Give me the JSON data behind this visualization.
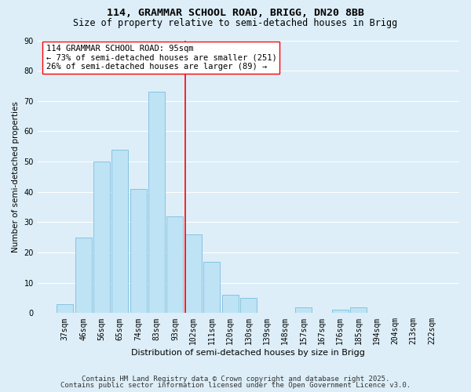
{
  "title": "114, GRAMMAR SCHOOL ROAD, BRIGG, DN20 8BB",
  "subtitle": "Size of property relative to semi-detached houses in Brigg",
  "xlabel": "Distribution of semi-detached houses by size in Brigg",
  "ylabel": "Number of semi-detached properties",
  "bar_labels": [
    "37sqm",
    "46sqm",
    "56sqm",
    "65sqm",
    "74sqm",
    "83sqm",
    "93sqm",
    "102sqm",
    "111sqm",
    "120sqm",
    "130sqm",
    "139sqm",
    "148sqm",
    "157sqm",
    "167sqm",
    "176sqm",
    "185sqm",
    "194sqm",
    "204sqm",
    "213sqm",
    "222sqm"
  ],
  "bar_values": [
    3,
    25,
    50,
    54,
    41,
    73,
    32,
    26,
    17,
    6,
    5,
    0,
    0,
    2,
    0,
    1,
    2,
    0,
    0,
    0,
    0
  ],
  "bar_color": "#bee3f5",
  "bar_edge_color": "#7bbedd",
  "background_color": "#ddeef8",
  "plot_bg_color": "#ddeef8",
  "grid_color": "#ffffff",
  "red_line_x": 6.57,
  "legend_text_line1": "114 GRAMMAR SCHOOL ROAD: 95sqm",
  "legend_text_line2": "← 73% of semi-detached houses are smaller (251)",
  "legend_text_line3": "26% of semi-detached houses are larger (89) →",
  "footer_line1": "Contains HM Land Registry data © Crown copyright and database right 2025.",
  "footer_line2": "Contains public sector information licensed under the Open Government Licence v3.0.",
  "ylim": [
    0,
    90
  ],
  "yticks": [
    0,
    10,
    20,
    30,
    40,
    50,
    60,
    70,
    80,
    90
  ],
  "title_fontsize": 9.5,
  "subtitle_fontsize": 8.5,
  "xlabel_fontsize": 8,
  "ylabel_fontsize": 7.5,
  "tick_fontsize": 7,
  "legend_fontsize": 7.5,
  "footer_fontsize": 6.5
}
